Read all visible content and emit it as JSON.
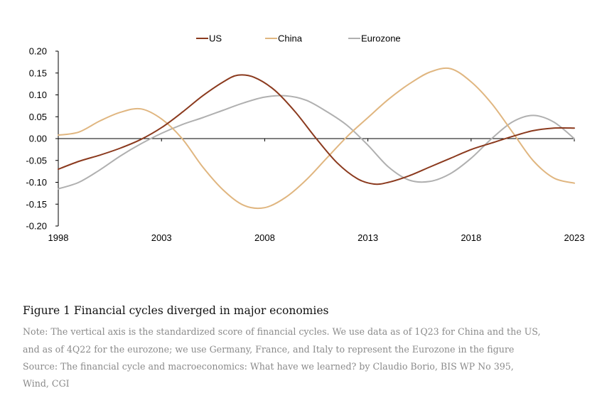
{
  "chart_data": {
    "type": "line",
    "title": "",
    "xlabel": "",
    "ylabel": "",
    "xlim": [
      1998,
      2023
    ],
    "ylim": [
      -0.2,
      0.2
    ],
    "yticks": [
      0.2,
      0.15,
      0.1,
      0.05,
      0.0,
      -0.05,
      -0.1,
      -0.15,
      -0.2
    ],
    "ytick_labels": [
      "0.20",
      "0.15",
      "0.10",
      "0.05",
      "0.00",
      "-0.05",
      "-0.10",
      "-0.15",
      "-0.20"
    ],
    "xticks": [
      1998,
      2003,
      2008,
      2013,
      2018,
      2023
    ],
    "xtick_labels": [
      "1998",
      "2003",
      "2008",
      "2013",
      "2018",
      "2023"
    ],
    "legend_position": "top-center",
    "series": [
      {
        "name": "US",
        "color": "#8b3a1e",
        "x": [
          1998,
          1999,
          2000,
          2001,
          2002,
          2003,
          2004,
          2005,
          2006,
          2006.7,
          2007.5,
          2008.5,
          2009.5,
          2010.5,
          2011.5,
          2012.5,
          2013.3,
          2014,
          2015,
          2016,
          2017,
          2018,
          2019,
          2020,
          2021,
          2022,
          2023
        ],
        "values": [
          -0.07,
          -0.052,
          -0.038,
          -0.022,
          -0.002,
          0.025,
          0.06,
          0.098,
          0.13,
          0.145,
          0.14,
          0.11,
          0.06,
          0.0,
          -0.055,
          -0.092,
          -0.104,
          -0.1,
          -0.085,
          -0.065,
          -0.045,
          -0.025,
          -0.01,
          0.005,
          0.018,
          0.024,
          0.024
        ]
      },
      {
        "name": "China",
        "color": "#e0b680",
        "x": [
          1998,
          1999,
          2000,
          2001,
          2002,
          2003,
          2004,
          2005,
          2006,
          2007,
          2008,
          2009,
          2010,
          2011,
          2012,
          2013,
          2014,
          2015,
          2016,
          2017,
          2018,
          2019,
          2020,
          2021,
          2022,
          2023
        ],
        "values": [
          0.008,
          0.015,
          0.04,
          0.06,
          0.068,
          0.045,
          0.0,
          -0.065,
          -0.118,
          -0.153,
          -0.158,
          -0.135,
          -0.095,
          -0.045,
          0.005,
          0.048,
          0.09,
          0.125,
          0.152,
          0.16,
          0.13,
          0.08,
          0.015,
          -0.05,
          -0.09,
          -0.102
        ]
      },
      {
        "name": "Eurozone",
        "color": "#b0b0b0",
        "x": [
          1998,
          1999,
          2000,
          2001,
          2002,
          2003,
          2004,
          2005,
          2006,
          2007,
          2008,
          2009,
          2010,
          2011,
          2012,
          2013,
          2014,
          2015,
          2016,
          2017,
          2018,
          2019,
          2020,
          2021,
          2022,
          2023
        ],
        "values": [
          -0.115,
          -0.1,
          -0.072,
          -0.04,
          -0.012,
          0.012,
          0.032,
          0.048,
          0.065,
          0.082,
          0.095,
          0.098,
          0.088,
          0.062,
          0.03,
          -0.015,
          -0.065,
          -0.095,
          -0.098,
          -0.08,
          -0.045,
          0.0,
          0.038,
          0.053,
          0.038,
          0.0
        ]
      }
    ]
  },
  "caption": {
    "title": "Figure 1 Financial cycles diverged in major economies",
    "note_line1": "Note: The vertical axis is the standardized score of financial cycles. We use data as of 1Q23 for China and the US,",
    "note_line2": "and as of 4Q22 for the eurozone; we use Germany, France, and Italy to represent the Eurozone in the figure",
    "source_line1": "Source: The financial cycle and macroeconomics: What have we learned? by Claudio Borio, BIS WP No 395,",
    "source_line2": "Wind, CGI"
  }
}
